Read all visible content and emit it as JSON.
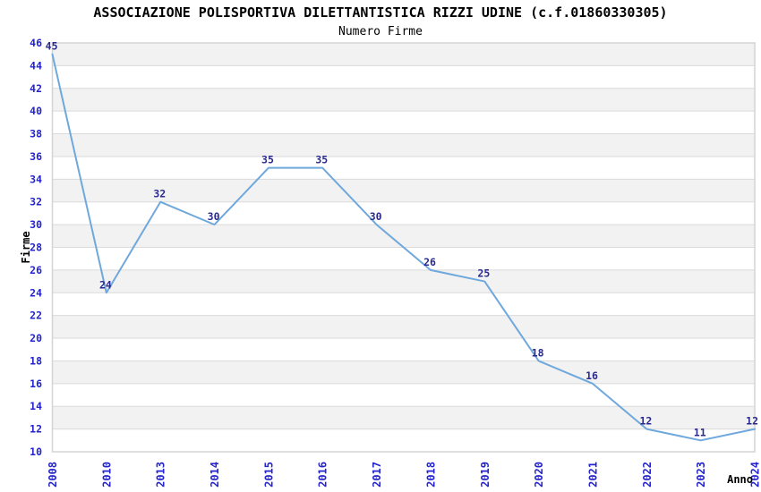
{
  "chart_data": {
    "type": "line",
    "title": "ASSOCIAZIONE POLISPORTIVA DILETTANTISTICA RIZZI UDINE (c.f.01860330305)",
    "subtitle": "Numero Firme",
    "xlabel": "Anno",
    "ylabel": "Firme",
    "categories": [
      "2008",
      "2010",
      "2013",
      "2014",
      "2015",
      "2016",
      "2017",
      "2018",
      "2019",
      "2020",
      "2021",
      "2022",
      "2023",
      "2024"
    ],
    "values": [
      45,
      24,
      32,
      30,
      35,
      35,
      30,
      26,
      25,
      18,
      16,
      12,
      11,
      12
    ],
    "ylim": [
      10,
      46
    ],
    "ytick_step": 2,
    "yticks": [
      10,
      12,
      14,
      16,
      18,
      20,
      22,
      24,
      26,
      28,
      30,
      32,
      34,
      36,
      38,
      40,
      42,
      44,
      46
    ],
    "grid": "alternating-horizontal-bands",
    "legend": "none",
    "data_labels_visible": true,
    "colors": {
      "line": "#6fa8dc",
      "tick_label": "#2424cc",
      "data_label": "#2a2a8e",
      "band_fill": "#f2f2f2",
      "grid_line": "#dadada",
      "plot_border": "#d4d4d4",
      "axis_title": "#000000",
      "title_text": "#000000",
      "background": "#ffffff"
    }
  }
}
